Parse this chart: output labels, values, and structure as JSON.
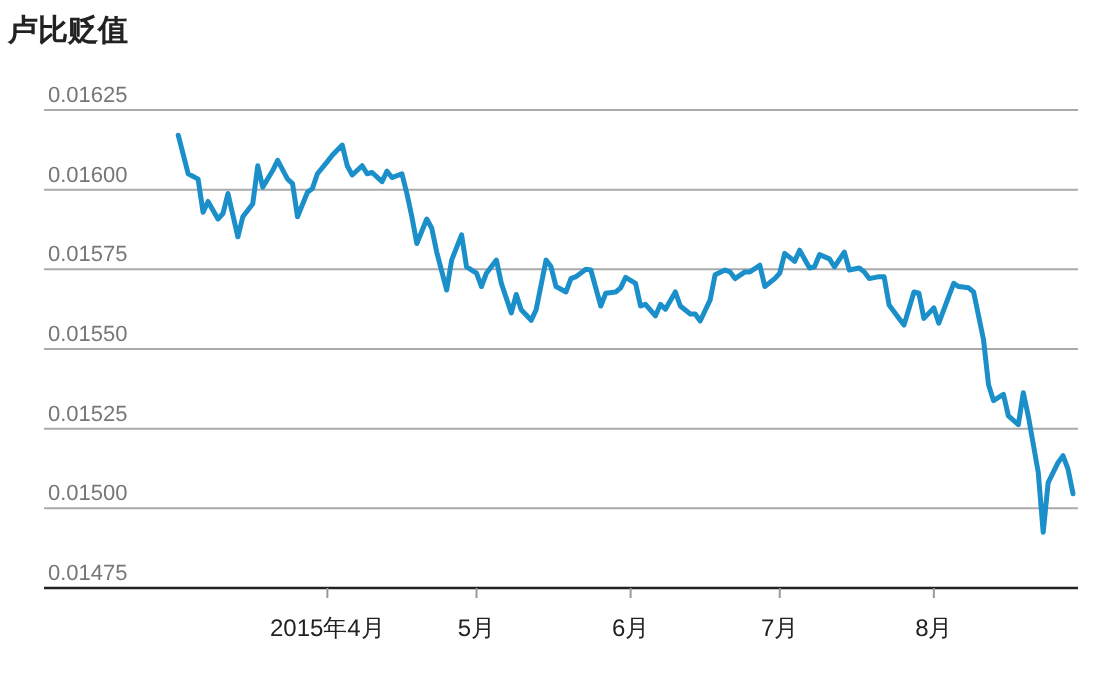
{
  "chart_data": {
    "type": "line",
    "title": "卢比贬值",
    "x": [
      "2015-03-02",
      "2015-03-04",
      "2015-03-06",
      "2015-03-07",
      "2015-03-08",
      "2015-03-10",
      "2015-03-11",
      "2015-03-12",
      "2015-03-14",
      "2015-03-15",
      "2015-03-17",
      "2015-03-18",
      "2015-03-19",
      "2015-03-21",
      "2015-03-22",
      "2015-03-24",
      "2015-03-25",
      "2015-03-26",
      "2015-03-28",
      "2015-03-29",
      "2015-03-30",
      "2015-04-01",
      "2015-04-02",
      "2015-04-04",
      "2015-04-05",
      "2015-04-06",
      "2015-04-08",
      "2015-04-09",
      "2015-04-10",
      "2015-04-12",
      "2015-04-13",
      "2015-04-14",
      "2015-04-16",
      "2015-04-17",
      "2015-04-18",
      "2015-04-19",
      "2015-04-21",
      "2015-04-22",
      "2015-04-23",
      "2015-04-25",
      "2015-04-26",
      "2015-04-28",
      "2015-04-29",
      "2015-05-01",
      "2015-05-02",
      "2015-05-03",
      "2015-05-05",
      "2015-05-06",
      "2015-05-08",
      "2015-05-09",
      "2015-05-10",
      "2015-05-12",
      "2015-05-13",
      "2015-05-15",
      "2015-05-16",
      "2015-05-17",
      "2015-05-19",
      "2015-05-20",
      "2015-05-21",
      "2015-05-23",
      "2015-05-24",
      "2015-05-26",
      "2015-05-27",
      "2015-05-29",
      "2015-05-30",
      "2015-05-31",
      "2015-06-02",
      "2015-06-03",
      "2015-06-04",
      "2015-06-06",
      "2015-06-07",
      "2015-06-08",
      "2015-06-10",
      "2015-06-11",
      "2015-06-13",
      "2015-06-14",
      "2015-06-15",
      "2015-06-17",
      "2015-06-18",
      "2015-06-20",
      "2015-06-21",
      "2015-06-22",
      "2015-06-24",
      "2015-06-25",
      "2015-06-27",
      "2015-06-28",
      "2015-06-30",
      "2015-07-01",
      "2015-07-02",
      "2015-07-04",
      "2015-07-05",
      "2015-07-07",
      "2015-07-08",
      "2015-07-09",
      "2015-07-11",
      "2015-07-12",
      "2015-07-14",
      "2015-07-15",
      "2015-07-17",
      "2015-07-18",
      "2015-07-19",
      "2015-07-21",
      "2015-07-22",
      "2015-07-23",
      "2015-07-25",
      "2015-07-26",
      "2015-07-28",
      "2015-07-29",
      "2015-07-30",
      "2015-08-01",
      "2015-08-02",
      "2015-08-04",
      "2015-08-05",
      "2015-08-06",
      "2015-08-08",
      "2015-08-09",
      "2015-08-11",
      "2015-08-12",
      "2015-08-13",
      "2015-08-15",
      "2015-08-16",
      "2015-08-18",
      "2015-08-19",
      "2015-08-20",
      "2015-08-22",
      "2015-08-23",
      "2015-08-24",
      "2015-08-26",
      "2015-08-27",
      "2015-08-28",
      "2015-08-29"
    ],
    "series": [
      {
        "color": "#1a8fc9",
        "values": [
          0.016171,
          0.01605,
          0.016033,
          0.015929,
          0.015963,
          0.015908,
          0.015925,
          0.015988,
          0.015852,
          0.015915,
          0.015956,
          0.016075,
          0.016008,
          0.01606,
          0.016092,
          0.016033,
          0.016019,
          0.015915,
          0.015992,
          0.016004,
          0.01605,
          0.016088,
          0.016108,
          0.01614,
          0.016075,
          0.016046,
          0.016075,
          0.01605,
          0.016054,
          0.016025,
          0.016058,
          0.016038,
          0.01605,
          0.015988,
          0.015915,
          0.015831,
          0.015908,
          0.015879,
          0.015804,
          0.015685,
          0.015779,
          0.015858,
          0.015758,
          0.015738,
          0.015696,
          0.015738,
          0.015779,
          0.015706,
          0.015613,
          0.015671,
          0.015623,
          0.01559,
          0.015623,
          0.015779,
          0.015758,
          0.015696,
          0.015679,
          0.015721,
          0.015727,
          0.01575,
          0.015748,
          0.015635,
          0.015675,
          0.015679,
          0.015692,
          0.015725,
          0.015706,
          0.015635,
          0.01564,
          0.015604,
          0.01564,
          0.015625,
          0.015679,
          0.015635,
          0.01561,
          0.01561,
          0.015588,
          0.015654,
          0.015733,
          0.015748,
          0.015742,
          0.015721,
          0.015742,
          0.015742,
          0.015763,
          0.015696,
          0.015721,
          0.015738,
          0.0158,
          0.015775,
          0.01581,
          0.015754,
          0.015758,
          0.015796,
          0.015783,
          0.015758,
          0.015804,
          0.015748,
          0.015754,
          0.015742,
          0.015721,
          0.015727,
          0.015727,
          0.015638,
          0.015596,
          0.015575,
          0.015679,
          0.015675,
          0.015596,
          0.015629,
          0.015581,
          0.015665,
          0.015706,
          0.015696,
          0.015692,
          0.015679,
          0.015529,
          0.015388,
          0.015338,
          0.015358,
          0.01529,
          0.015263,
          0.015363,
          0.01529,
          0.015113,
          0.014925,
          0.015081,
          0.015144,
          0.015165,
          0.015123,
          0.015046
        ]
      }
    ],
    "xlim": [
      "2015-02-03",
      "2015-08-30"
    ],
    "xticks": [
      {
        "value": "2015-04-01",
        "label": "2015年4月"
      },
      {
        "value": "2015-05-01",
        "label": "5月"
      },
      {
        "value": "2015-06-01",
        "label": "6月"
      },
      {
        "value": "2015-07-01",
        "label": "7月"
      },
      {
        "value": "2015-08-01",
        "label": "8月"
      }
    ],
    "ylim": [
      0.01475,
      0.01625
    ],
    "yticks": [
      {
        "value": 0.01475,
        "label": "0.01475"
      },
      {
        "value": 0.015,
        "label": "0.01500"
      },
      {
        "value": 0.01525,
        "label": "0.01525"
      },
      {
        "value": 0.0155,
        "label": "0.01550"
      },
      {
        "value": 0.01575,
        "label": "0.01575"
      },
      {
        "value": 0.016,
        "label": "0.01600"
      },
      {
        "value": 0.01625,
        "label": "0.01625"
      }
    ],
    "grid": "y",
    "marker": "none",
    "line_style": "solid"
  }
}
